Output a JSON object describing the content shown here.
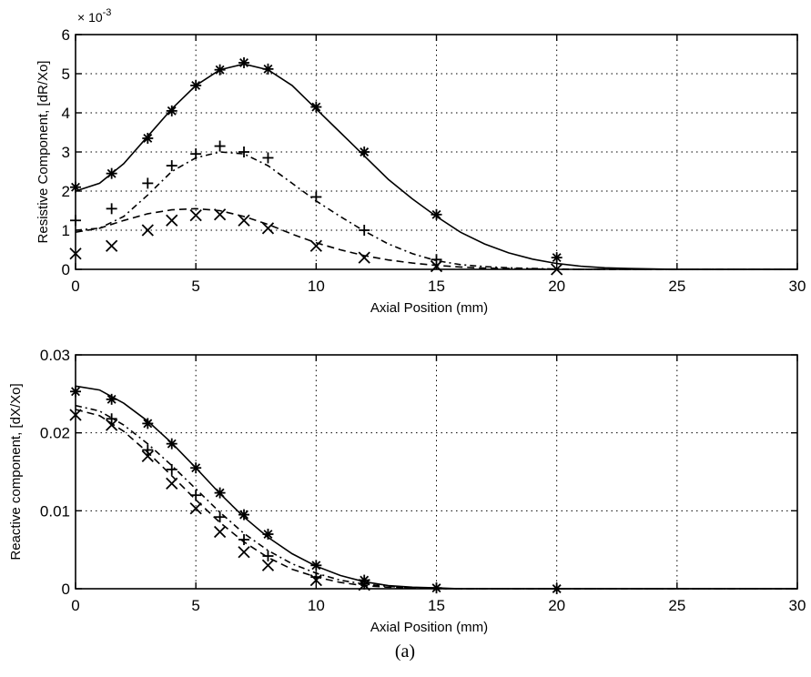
{
  "caption": "(a)",
  "chart_data": [
    {
      "type": "line",
      "xlabel": "Axial Position (mm)",
      "ylabel": "Resistive Component, [dR/Xo]",
      "y_multiplier_base": "× 10",
      "y_multiplier_exp": "-3",
      "xlim": [
        0,
        30
      ],
      "ylim": [
        0,
        6
      ],
      "grid": true,
      "xticks": [
        0,
        5,
        10,
        15,
        20,
        25,
        30
      ],
      "yticks": [
        0,
        1,
        2,
        3,
        4,
        5,
        6
      ],
      "series": [
        {
          "style": "solid",
          "marker": "*",
          "curve_x": [
            0,
            1,
            2,
            3,
            4,
            5,
            6,
            7,
            8,
            9,
            10,
            11,
            12,
            13,
            14,
            15,
            16,
            17,
            18,
            19,
            20,
            21,
            22,
            23,
            24,
            25,
            26,
            27,
            28,
            29,
            30
          ],
          "curve_y": [
            2.0,
            2.2,
            2.7,
            3.4,
            4.1,
            4.7,
            5.1,
            5.25,
            5.1,
            4.7,
            4.1,
            3.5,
            2.9,
            2.3,
            1.8,
            1.35,
            0.95,
            0.65,
            0.42,
            0.26,
            0.15,
            0.08,
            0.04,
            0.02,
            0.01,
            0.0,
            0.0,
            0.0,
            0.0,
            0.0,
            0.0
          ],
          "points_x": [
            0,
            1.5,
            3,
            4,
            5,
            6,
            7,
            8,
            10,
            12,
            15,
            20
          ],
          "points_y": [
            2.1,
            2.45,
            3.35,
            4.05,
            4.7,
            5.1,
            5.28,
            5.12,
            4.15,
            3.0,
            1.4,
            0.3
          ]
        },
        {
          "style": "dashdot",
          "marker": "+",
          "curve_x": [
            0,
            1,
            2,
            3,
            4,
            5,
            6,
            7,
            8,
            9,
            10,
            11,
            12,
            13,
            14,
            15,
            16,
            17,
            18,
            19,
            20,
            21,
            22,
            23,
            24,
            25,
            26,
            27,
            28,
            29,
            30
          ],
          "curve_y": [
            1.0,
            1.05,
            1.35,
            1.9,
            2.5,
            2.85,
            3.0,
            2.95,
            2.65,
            2.2,
            1.75,
            1.35,
            0.98,
            0.65,
            0.4,
            0.22,
            0.12,
            0.07,
            0.04,
            0.02,
            0.01,
            0.0,
            0.0,
            0.0,
            0.0,
            0.0,
            0.0,
            0.0,
            0.0,
            0.0,
            0.0
          ],
          "points_x": [
            0,
            1.5,
            3,
            4,
            5,
            6,
            7,
            8,
            10,
            12,
            15
          ],
          "points_y": [
            1.25,
            1.55,
            2.2,
            2.65,
            2.95,
            3.15,
            3.0,
            2.85,
            1.85,
            1.0,
            0.25
          ]
        },
        {
          "style": "dashed",
          "marker": "x",
          "curve_x": [
            0,
            1,
            2,
            3,
            4,
            5,
            6,
            7,
            8,
            9,
            10,
            11,
            12,
            13,
            14,
            15,
            16,
            17,
            18,
            19,
            20,
            21,
            22,
            23,
            24,
            25,
            26,
            27,
            28,
            29,
            30
          ],
          "curve_y": [
            0.95,
            1.05,
            1.25,
            1.42,
            1.52,
            1.55,
            1.5,
            1.35,
            1.15,
            0.9,
            0.68,
            0.5,
            0.35,
            0.24,
            0.16,
            0.1,
            0.06,
            0.03,
            0.02,
            0.01,
            0.0,
            0.0,
            0.0,
            0.0,
            0.0,
            0.0,
            0.0,
            0.0,
            0.0,
            0.0,
            0.0
          ],
          "points_x": [
            0,
            1.5,
            3,
            4,
            5,
            6,
            7,
            8,
            10,
            12,
            15,
            20
          ],
          "points_y": [
            0.4,
            0.6,
            1.0,
            1.25,
            1.38,
            1.4,
            1.25,
            1.05,
            0.6,
            0.3,
            0.08,
            0.0
          ]
        }
      ]
    },
    {
      "type": "line",
      "xlabel": "Axial Position (mm)",
      "ylabel": "Reactive component, [dX/Xo]",
      "xlim": [
        0,
        30
      ],
      "ylim": [
        0,
        0.03
      ],
      "grid": true,
      "xticks": [
        0,
        5,
        10,
        15,
        20,
        25,
        30
      ],
      "yticks": [
        0,
        0.01,
        0.02,
        0.03
      ],
      "ytick_labels": [
        "0",
        "0.01",
        "0.02",
        "0.03"
      ],
      "series": [
        {
          "style": "solid",
          "marker": "*",
          "curve_x": [
            0,
            1,
            2,
            3,
            4,
            5,
            6,
            7,
            8,
            9,
            10,
            11,
            12,
            13,
            14,
            15,
            16,
            17,
            18,
            19,
            20,
            21,
            22,
            23,
            24,
            25,
            26,
            27,
            28,
            29,
            30
          ],
          "curve_y": [
            0.026,
            0.0255,
            0.0238,
            0.0215,
            0.0187,
            0.0155,
            0.0122,
            0.0092,
            0.0066,
            0.0045,
            0.0029,
            0.0017,
            0.0009,
            0.0004,
            0.0002,
            0.0001,
            0.0,
            0.0,
            0.0,
            0.0,
            0.0,
            0.0,
            0.0,
            0.0,
            0.0,
            0.0,
            0.0,
            0.0,
            0.0,
            0.0,
            0.0
          ],
          "points_x": [
            0,
            1.5,
            3,
            4,
            5,
            6,
            7,
            8,
            10,
            12,
            15,
            20
          ],
          "points_y": [
            0.0253,
            0.0243,
            0.0212,
            0.0186,
            0.0155,
            0.0123,
            0.0095,
            0.007,
            0.003,
            0.0011,
            0.0001,
            0.0
          ]
        },
        {
          "style": "dashdot",
          "marker": "+",
          "curve_x": [
            0,
            1,
            2,
            3,
            4,
            5,
            6,
            7,
            8,
            9,
            10,
            11,
            12,
            13,
            14,
            15,
            16,
            17,
            18,
            19,
            20,
            21,
            22,
            23,
            24,
            25,
            26,
            27,
            28,
            29,
            30
          ],
          "curve_y": [
            0.0235,
            0.0228,
            0.021,
            0.0186,
            0.0158,
            0.0128,
            0.0098,
            0.0071,
            0.0049,
            0.0032,
            0.002,
            0.0011,
            0.0006,
            0.0003,
            0.0001,
            0.0,
            0.0,
            0.0,
            0.0,
            0.0,
            0.0,
            0.0,
            0.0,
            0.0,
            0.0,
            0.0,
            0.0,
            0.0,
            0.0,
            0.0,
            0.0
          ],
          "points_x": [
            1.5,
            3,
            4,
            5,
            6,
            7,
            8,
            10,
            12
          ],
          "points_y": [
            0.0218,
            0.0178,
            0.0153,
            0.012,
            0.0092,
            0.0063,
            0.0042,
            0.0015,
            0.0006
          ]
        },
        {
          "style": "dashed",
          "marker": "x",
          "curve_x": [
            0,
            1,
            2,
            3,
            4,
            5,
            6,
            7,
            8,
            9,
            10,
            11,
            12,
            13,
            14,
            15,
            16,
            17,
            18,
            19,
            20,
            21,
            22,
            23,
            24,
            25,
            26,
            27,
            28,
            29,
            30
          ],
          "curve_y": [
            0.023,
            0.0222,
            0.0202,
            0.0175,
            0.0145,
            0.0114,
            0.0085,
            0.006,
            0.004,
            0.0025,
            0.0015,
            0.0008,
            0.0004,
            0.0002,
            0.0001,
            0.0,
            0.0,
            0.0,
            0.0,
            0.0,
            0.0,
            0.0,
            0.0,
            0.0,
            0.0,
            0.0,
            0.0,
            0.0,
            0.0,
            0.0,
            0.0
          ],
          "points_x": [
            0,
            1.5,
            3,
            4,
            5,
            6,
            7,
            8,
            10,
            12
          ],
          "points_y": [
            0.0223,
            0.021,
            0.017,
            0.0135,
            0.0103,
            0.0073,
            0.0047,
            0.003,
            0.0011,
            0.0005
          ]
        }
      ]
    }
  ]
}
